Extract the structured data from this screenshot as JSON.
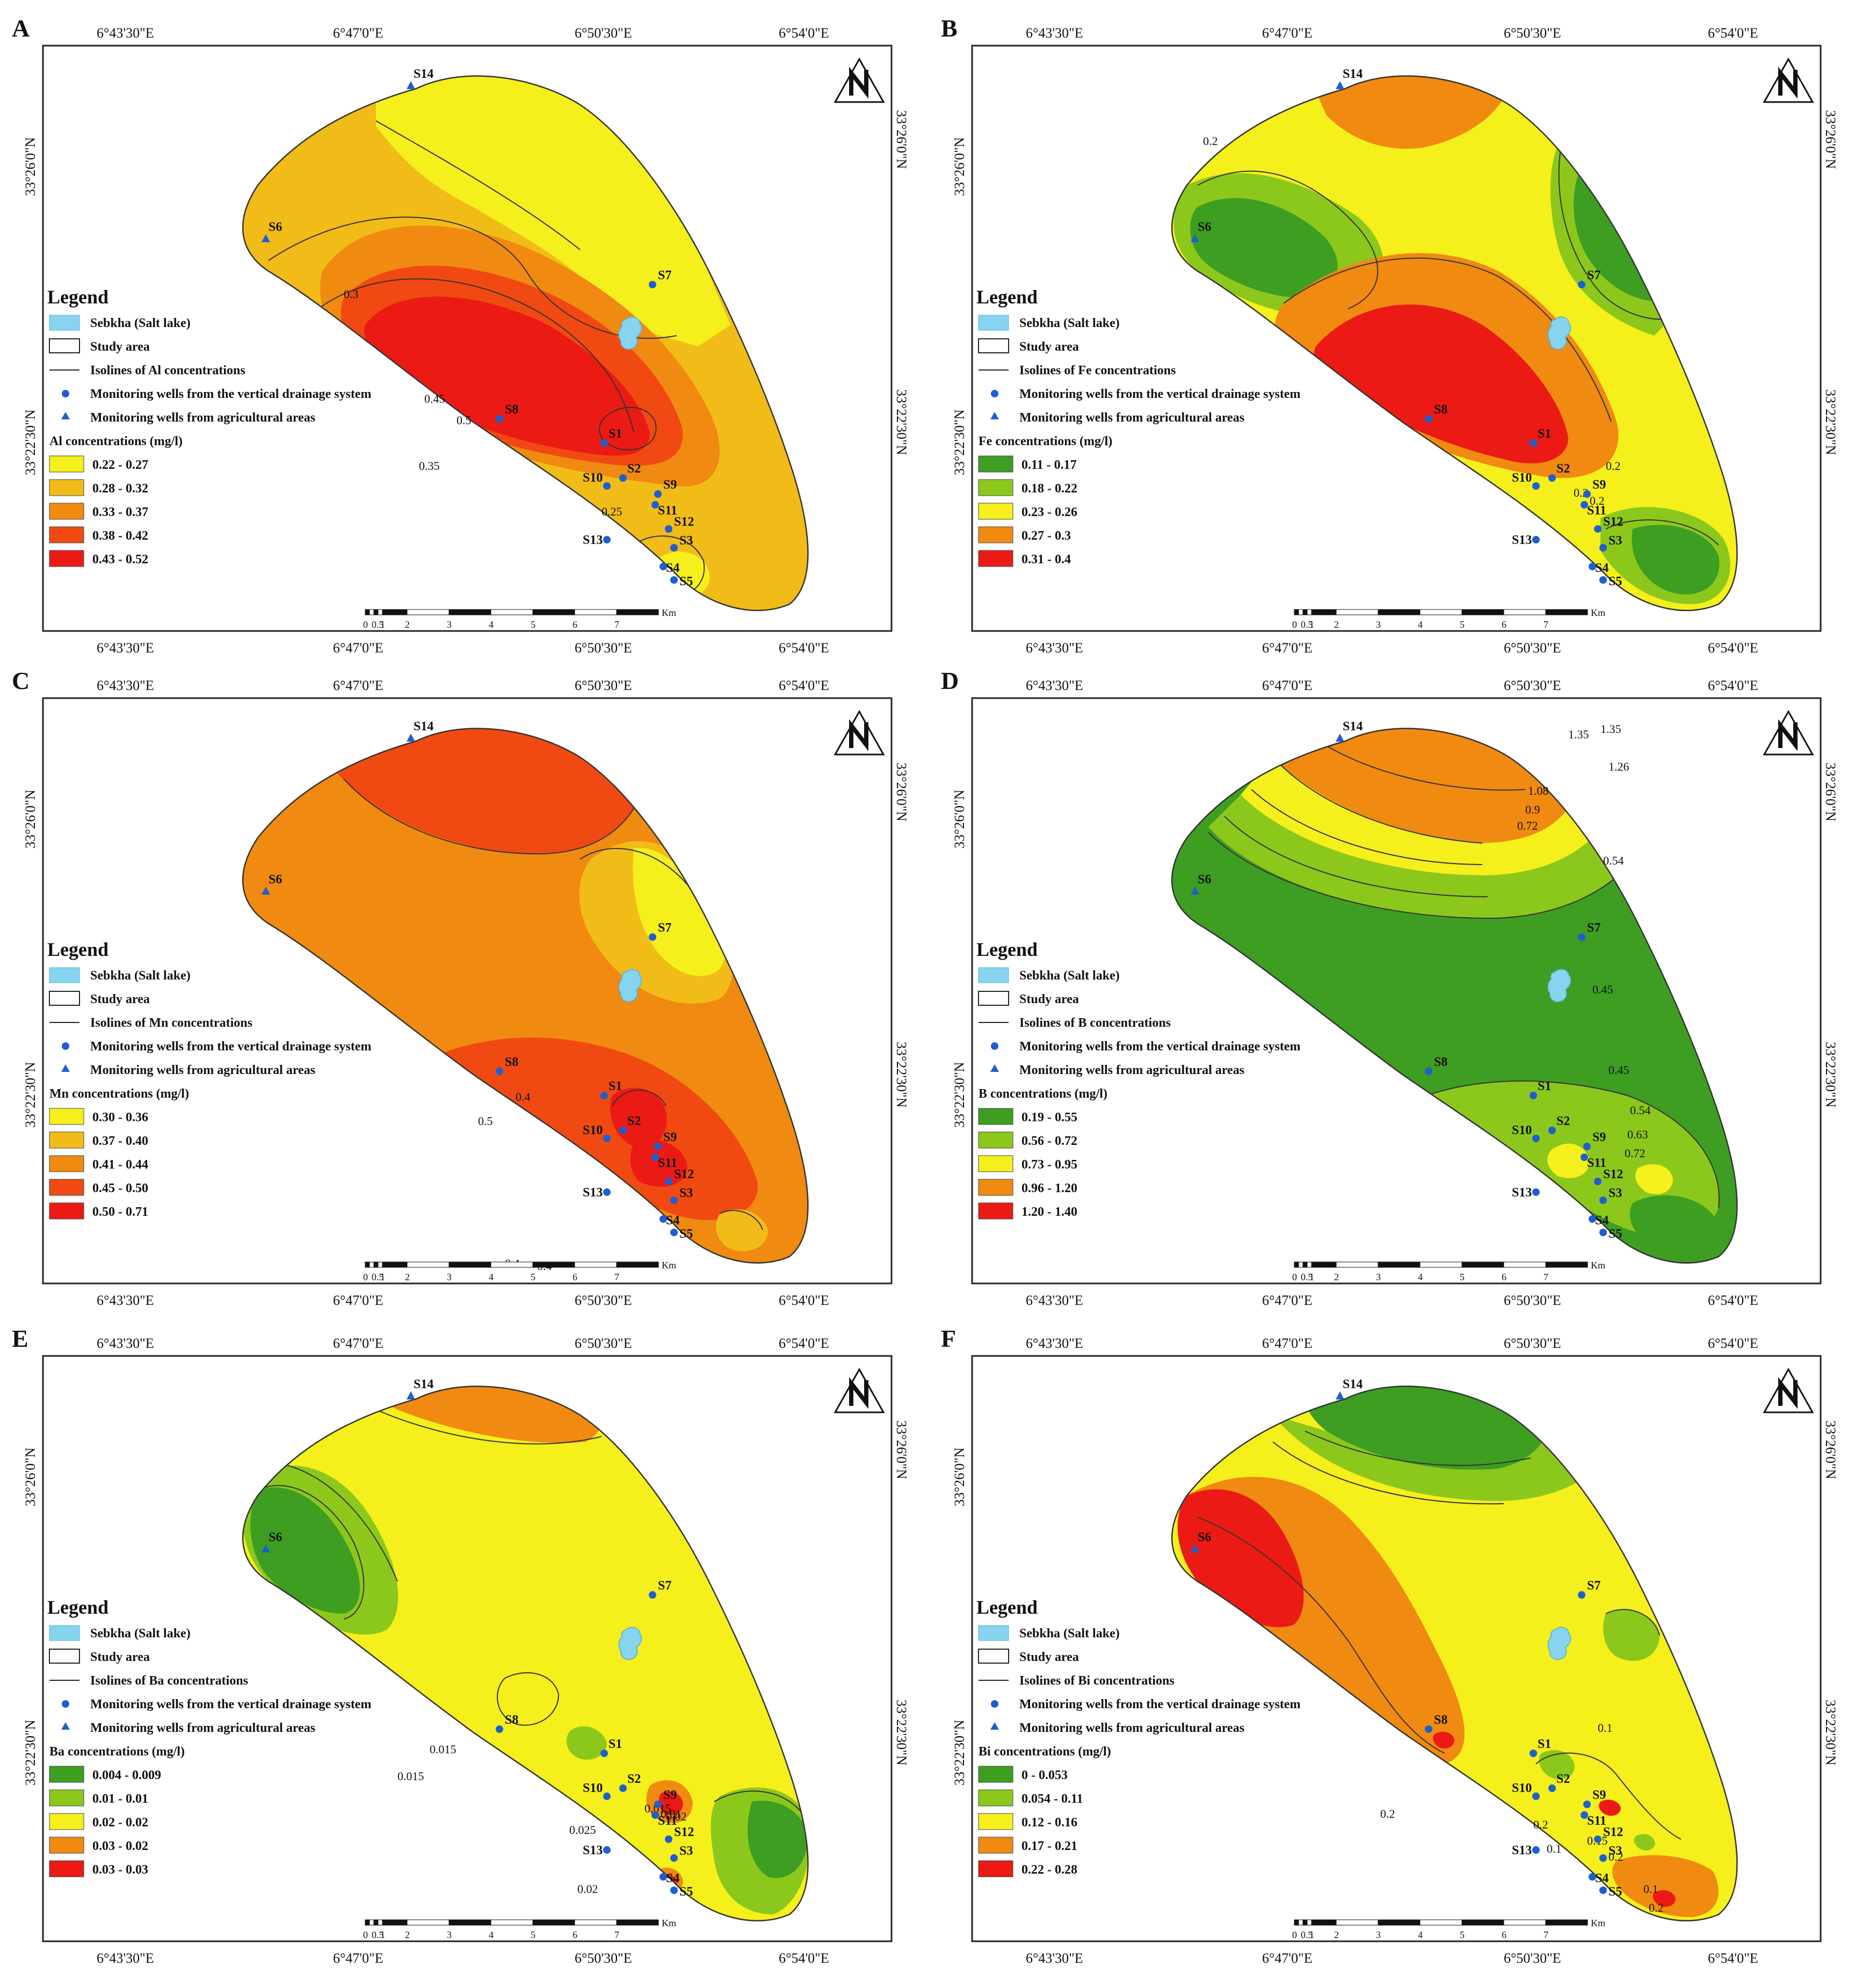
{
  "coords": {
    "lon": [
      "6°43'30\"E",
      "6°47'0\"E",
      "6°50'30\"E",
      "6°54'0\"E"
    ],
    "lat": [
      "33°26'0\"N",
      "33°22'30\"N"
    ]
  },
  "scale": {
    "ticks": [
      "0",
      "0.5",
      "1",
      "2",
      "3",
      "4",
      "5",
      "6",
      "7"
    ],
    "unit": "Km"
  },
  "legend_common": {
    "title": "Legend",
    "sebkha": "Sebkha (Salt lake)",
    "study_area": "Study area",
    "wells_drainage": "Monitoring wells from the vertical drainage system",
    "wells_agri": "Monitoring wells from agricultural areas"
  },
  "panels": [
    {
      "label": "A",
      "isolines": "Isolines of Al concentrations",
      "conc_title": "Al concentrations (mg/l)",
      "classes": [
        "0.22 - 0.27",
        "0.28 - 0.32",
        "0.33 - 0.37",
        "0.38 - 0.42",
        "0.43 - 0.52"
      ],
      "colors": [
        "#f5ef1c",
        "#f2bc18",
        "#f08a10",
        "#f04a12",
        "#ec1a14"
      ],
      "iso": [
        "0.3",
        "0.45",
        "0.5",
        "0.35",
        "0.25"
      ]
    },
    {
      "label": "B",
      "isolines": "Isolines of Fe concentrations",
      "conc_title": "Fe concentrations (mg/l)",
      "classes": [
        "0.11 - 0.17",
        "0.18 - 0.22",
        "0.23 - 0.26",
        "0.27 - 0.3",
        "0.31 - 0.4"
      ],
      "colors": [
        "#3e9e22",
        "#8cc81c",
        "#f5ef1c",
        "#f08a10",
        "#ec1a14"
      ],
      "iso": [
        "0.2",
        "0.2",
        "0.2",
        "0.2"
      ]
    },
    {
      "label": "C",
      "isolines": "Isolines of Mn concentrations",
      "conc_title": "Mn concentrations (mg/l)",
      "classes": [
        "0.30 - 0.36",
        "0.37 - 0.40",
        "0.41 - 0.44",
        "0.45 - 0.50",
        "0.50 - 0.71"
      ],
      "colors": [
        "#f5ef1c",
        "#f2bc18",
        "#f08a10",
        "#f04a12",
        "#ec1a14"
      ],
      "iso": [
        "0.4",
        "0.5",
        "0.4",
        "0.4"
      ]
    },
    {
      "label": "D",
      "isolines": "Isolines of B concentrations",
      "conc_title": "B concentrations (mg/l)",
      "classes": [
        "0.19 - 0.55",
        "0.56 - 0.72",
        "0.73 - 0.95",
        "0.96 - 1.20",
        "1.20 - 1.40"
      ],
      "colors": [
        "#3e9e22",
        "#8cc81c",
        "#f5ef1c",
        "#f08a10",
        "#ec1a14"
      ],
      "iso": [
        "1.35",
        "1.35",
        "1.26",
        "1.08",
        "0.9",
        "0.72",
        "0.54",
        "0.45",
        "0.45",
        "0.54",
        "0.63",
        "0.72"
      ]
    },
    {
      "label": "E",
      "isolines": "Isolines of Ba concentrations",
      "conc_title": "Ba concentrations (mg/l)",
      "classes": [
        "0.004 - 0.009",
        "0.01 - 0.01",
        "0.02 - 0.02",
        "0.03 - 0.02",
        "0.03 - 0.03"
      ],
      "colors": [
        "#3e9e22",
        "#8cc81c",
        "#f5ef1c",
        "#f08a10",
        "#ec1a14"
      ],
      "iso": [
        "0.015",
        "0.015",
        "0.025",
        "0.02",
        "0.015",
        "0.01",
        "0.02"
      ]
    },
    {
      "label": "F",
      "isolines": "Isolines of Bi concentrations",
      "conc_title": "Bi concentrations (mg/l)",
      "classes": [
        "0 - 0.053",
        "0.054 - 0.11",
        "0.12 - 0.16",
        "0.17 - 0.21",
        "0.22 - 0.28"
      ],
      "colors": [
        "#3e9e22",
        "#8cc81c",
        "#f5ef1c",
        "#f08a10",
        "#ec1a14"
      ],
      "iso": [
        "0.1",
        "0.2",
        "0.2",
        "0.1",
        "0.15",
        "0.2",
        "0.1",
        "0.2"
      ]
    }
  ],
  "wells": [
    "S1",
    "S2",
    "S3",
    "S4",
    "S5",
    "S6",
    "S7",
    "S8",
    "S9",
    "S10",
    "S11",
    "S12",
    "S13",
    "S14"
  ]
}
